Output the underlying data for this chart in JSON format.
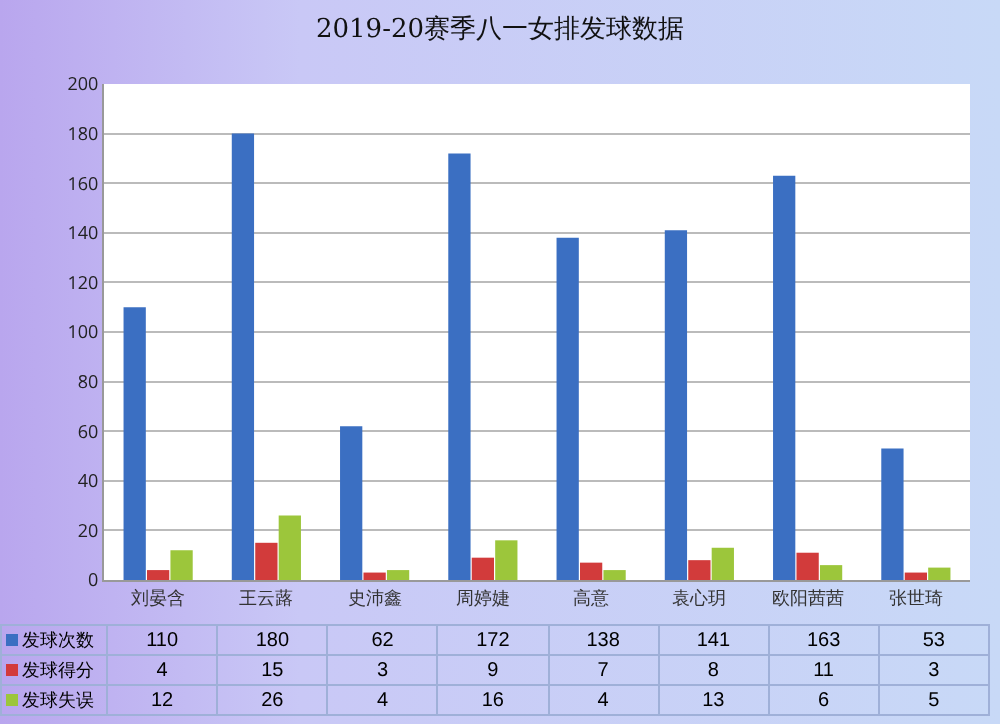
{
  "chart_data": {
    "type": "bar",
    "title": "2019-20赛季八一女排发球数据",
    "categories": [
      "刘晏含",
      "王云蕗",
      "史沛鑫",
      "周婷婕",
      "高意",
      "袁心玥",
      "欧阳茜茜",
      "张世琦"
    ],
    "series": [
      {
        "name": "发球次数",
        "color": "#3b6fc2",
        "values": [
          110,
          180,
          62,
          172,
          138,
          141,
          163,
          53
        ]
      },
      {
        "name": "发球得分",
        "color": "#d23b3b",
        "values": [
          4,
          15,
          3,
          9,
          7,
          8,
          11,
          3
        ]
      },
      {
        "name": "发球失误",
        "color": "#9cc63b",
        "values": [
          12,
          26,
          4,
          16,
          4,
          13,
          6,
          5
        ]
      }
    ],
    "ylim": [
      0,
      200
    ],
    "yticks": [
      0,
      20,
      40,
      60,
      80,
      100,
      120,
      140,
      160,
      180,
      200
    ],
    "grid": "y",
    "data_labels": true,
    "legend": "bottom left"
  }
}
